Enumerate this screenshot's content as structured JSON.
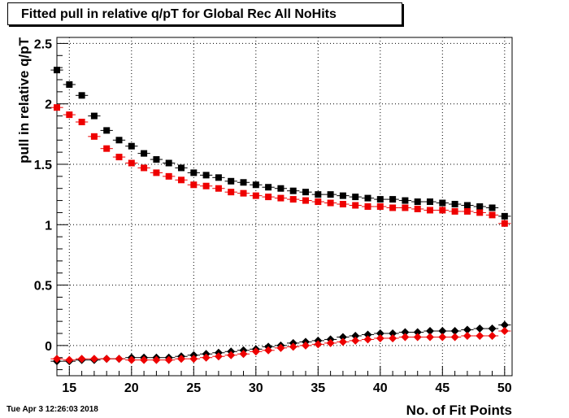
{
  "title": "Fitted pull in relative q/pT  for Global Rec All NoHits",
  "timestamp": "Tue Apr  3 12:26:03 2018",
  "chart_data": {
    "type": "scatter",
    "xlabel": "No. of Fit Points",
    "ylabel": "pull in relative q/pT",
    "xlim": [
      14,
      50.6
    ],
    "ylim": [
      -0.25,
      2.55
    ],
    "grid": true,
    "x_ticks": [
      "15",
      "20",
      "25",
      "30",
      "35",
      "40",
      "45",
      "50"
    ],
    "y_ticks": [
      "0",
      "0.5",
      "1",
      "1.5",
      "2",
      "2.5"
    ],
    "x": [
      14,
      15,
      16,
      17,
      18,
      19,
      20,
      21,
      22,
      23,
      24,
      25,
      26,
      27,
      28,
      29,
      30,
      31,
      32,
      33,
      34,
      35,
      36,
      37,
      38,
      39,
      40,
      41,
      42,
      43,
      44,
      45,
      46,
      47,
      48,
      49,
      50
    ],
    "series": [
      {
        "color": "#000000",
        "marker": "square",
        "values": [
          2.28,
          2.16,
          2.07,
          1.9,
          1.78,
          1.7,
          1.65,
          1.59,
          1.54,
          1.51,
          1.47,
          1.43,
          1.41,
          1.39,
          1.36,
          1.35,
          1.33,
          1.31,
          1.3,
          1.28,
          1.27,
          1.25,
          1.25,
          1.24,
          1.23,
          1.22,
          1.21,
          1.21,
          1.2,
          1.19,
          1.19,
          1.18,
          1.17,
          1.16,
          1.15,
          1.14,
          1.07
        ]
      },
      {
        "color": "#ee0000",
        "marker": "square",
        "values": [
          1.97,
          1.91,
          1.85,
          1.73,
          1.63,
          1.56,
          1.51,
          1.47,
          1.43,
          1.4,
          1.37,
          1.33,
          1.32,
          1.3,
          1.27,
          1.26,
          1.24,
          1.23,
          1.22,
          1.21,
          1.2,
          1.19,
          1.18,
          1.17,
          1.16,
          1.15,
          1.15,
          1.14,
          1.14,
          1.13,
          1.12,
          1.12,
          1.11,
          1.11,
          1.1,
          1.08,
          1.01
        ]
      },
      {
        "color": "#000000",
        "marker": "diamond",
        "values": [
          -0.13,
          -0.13,
          -0.12,
          -0.12,
          -0.11,
          -0.11,
          -0.1,
          -0.1,
          -0.1,
          -0.1,
          -0.09,
          -0.08,
          -0.07,
          -0.06,
          -0.05,
          -0.04,
          -0.03,
          -0.01,
          0.0,
          0.02,
          0.03,
          0.04,
          0.05,
          0.07,
          0.08,
          0.09,
          0.1,
          0.1,
          0.11,
          0.11,
          0.12,
          0.12,
          0.12,
          0.13,
          0.14,
          0.14,
          0.17
        ]
      },
      {
        "color": "#ee0000",
        "marker": "diamond",
        "values": [
          -0.11,
          -0.12,
          -0.11,
          -0.11,
          -0.11,
          -0.11,
          -0.12,
          -0.12,
          -0.12,
          -0.12,
          -0.11,
          -0.11,
          -0.1,
          -0.09,
          -0.08,
          -0.07,
          -0.05,
          -0.04,
          -0.02,
          -0.01,
          0.0,
          0.01,
          0.02,
          0.03,
          0.04,
          0.05,
          0.06,
          0.06,
          0.07,
          0.07,
          0.07,
          0.07,
          0.07,
          0.08,
          0.08,
          0.08,
          0.12
        ]
      }
    ]
  }
}
